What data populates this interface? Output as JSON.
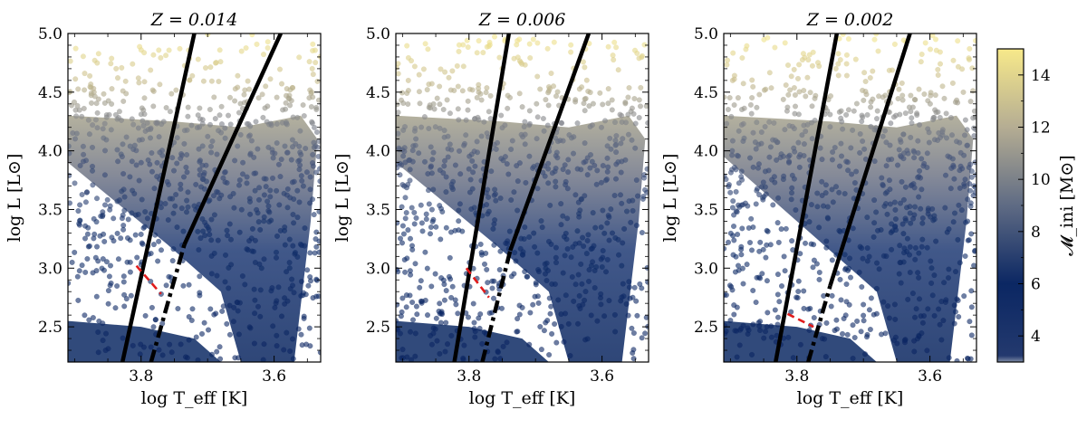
{
  "chart_data": [
    {
      "type": "scatter",
      "title": "Z = 0.014",
      "xlabel": "log T_eff [K]",
      "ylabel": "log L [L⊙]",
      "xlim": [
        3.91,
        3.53
      ],
      "ylim": [
        2.2,
        5.0
      ],
      "x_inverted": true,
      "xticks": [
        3.8,
        3.6
      ],
      "xtick_labels": [
        "3.8",
        "3.6"
      ],
      "yticks": [
        2.5,
        3.0,
        3.5,
        4.0,
        4.5,
        5.0
      ],
      "ytick_labels": [
        "2.5",
        "3.0",
        "3.5",
        "4.0",
        "4.5",
        "5.0"
      ],
      "color_encoding": "M_ini [M⊙]",
      "lines": [
        {
          "name": "blue edge",
          "style": "solid",
          "x": [
            3.828,
            3.72
          ],
          "y": [
            2.2,
            5.0
          ]
        },
        {
          "name": "red edge upper",
          "style": "solid",
          "x": [
            3.735,
            3.59
          ],
          "y": [
            3.2,
            5.0
          ]
        },
        {
          "name": "red edge lower",
          "style": "dashdot",
          "x": [
            3.785,
            3.735
          ],
          "y": [
            2.2,
            3.2
          ]
        },
        {
          "name": "connector",
          "style": "dashed-red",
          "x": [
            3.807,
            3.77
          ],
          "y": [
            3.02,
            2.78
          ]
        }
      ]
    },
    {
      "type": "scatter",
      "title": "Z = 0.006",
      "xlabel": "log T_eff [K]",
      "ylabel": "log L [L⊙]",
      "xlim": [
        3.91,
        3.53
      ],
      "ylim": [
        2.2,
        5.0
      ],
      "x_inverted": true,
      "xticks": [
        3.8,
        3.6
      ],
      "xtick_labels": [
        "3.8",
        "3.6"
      ],
      "yticks": [
        2.5,
        3.0,
        3.5,
        4.0,
        4.5,
        5.0
      ],
      "ytick_labels": [
        "2.5",
        "3.0",
        "3.5",
        "4.0",
        "4.5",
        "5.0"
      ],
      "color_encoding": "M_ini [M⊙]",
      "lines": [
        {
          "name": "blue edge",
          "style": "solid",
          "x": [
            3.822,
            3.74
          ],
          "y": [
            2.2,
            5.0
          ]
        },
        {
          "name": "red edge upper",
          "style": "solid",
          "x": [
            3.738,
            3.62
          ],
          "y": [
            3.15,
            5.0
          ]
        },
        {
          "name": "red edge lower",
          "style": "dashdot",
          "x": [
            3.78,
            3.738
          ],
          "y": [
            2.2,
            3.15
          ]
        },
        {
          "name": "connector",
          "style": "dashed-red",
          "x": [
            3.804,
            3.77
          ],
          "y": [
            3.0,
            2.75
          ]
        }
      ]
    },
    {
      "type": "scatter",
      "title": "Z = 0.002",
      "xlabel": "log T_eff [K]",
      "ylabel": "log L [L⊙]",
      "xlim": [
        3.91,
        3.53
      ],
      "ylim": [
        2.2,
        5.0
      ],
      "x_inverted": true,
      "xticks": [
        3.8,
        3.6
      ],
      "xtick_labels": [
        "3.8",
        "3.6"
      ],
      "yticks": [
        2.5,
        3.0,
        3.5,
        4.0,
        4.5,
        5.0
      ],
      "ytick_labels": [
        "2.5",
        "3.0",
        "3.5",
        "4.0",
        "4.5",
        "5.0"
      ],
      "color_encoding": "M_ini [M⊙]",
      "lines": [
        {
          "name": "blue edge",
          "style": "solid",
          "x": [
            3.832,
            3.74
          ],
          "y": [
            2.2,
            5.0
          ]
        },
        {
          "name": "red edge upper",
          "style": "solid",
          "x": [
            3.75,
            3.63
          ],
          "y": [
            2.85,
            5.0
          ]
        },
        {
          "name": "red edge lower",
          "style": "dashdot",
          "x": [
            3.783,
            3.75
          ],
          "y": [
            2.2,
            2.85
          ]
        },
        {
          "name": "connector",
          "style": "dashed-red",
          "x": [
            3.814,
            3.775
          ],
          "y": [
            2.61,
            2.5
          ]
        }
      ]
    }
  ],
  "colorbar": {
    "label": "𝓜_ini [M⊙]",
    "range": [
      3,
      15
    ],
    "ticks": [
      4,
      6,
      8,
      10,
      12,
      14
    ],
    "tick_labels": [
      "4",
      "6",
      "8",
      "10",
      "12",
      "14"
    ],
    "colors": [
      "#7f8ca6",
      "#0b2763",
      "#bcb089",
      "#f7e98a"
    ]
  },
  "labels": {
    "titles": [
      "Z = 0.014",
      "Z = 0.006",
      "Z = 0.002"
    ],
    "xlabel": "log T_eff [K]",
    "ylabel": "log L [L⊙]",
    "cbar_label": "𝓜_ini [M⊙]"
  }
}
